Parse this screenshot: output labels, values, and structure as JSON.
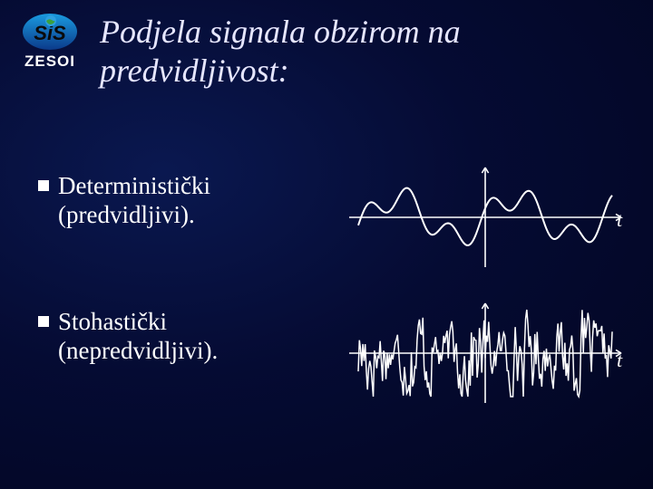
{
  "logo": {
    "label": "ZESOI",
    "gradient_top": "#1a9be0",
    "gradient_bottom": "#0b3a8a",
    "letter_fill": "#0a0a0a",
    "globe_land": "#3aa040",
    "globe_sky": "#2ea0e0"
  },
  "title": {
    "text": "Podjela signala obzirom na predvidljivost:",
    "fontsize": 36,
    "color": "#e6e6ff"
  },
  "bullets": [
    {
      "text": "Deterministički (predvidljivi)."
    },
    {
      "text": "Stohastički (nepredvidljivi)."
    }
  ],
  "axis_label": "t",
  "colors": {
    "line": "#ffffff",
    "axis": "#ffffff",
    "bg_center": "#0a1850",
    "bg_edge": "#020520"
  },
  "deterministic_signal": {
    "type": "line",
    "stroke_width": 2,
    "amplitudes": [
      22,
      14
    ],
    "periods": [
      130,
      45
    ],
    "x_range": [
      -140,
      140
    ],
    "samples": 280
  },
  "stochastic_signal": {
    "type": "line",
    "stroke_width": 1.5,
    "max_amplitude": 48,
    "x_range": [
      -140,
      140
    ],
    "samples": 220,
    "seed": 17
  },
  "axes": {
    "x_half": 150,
    "y_half": 55,
    "arrow": 6,
    "stroke_width": 1.6
  }
}
